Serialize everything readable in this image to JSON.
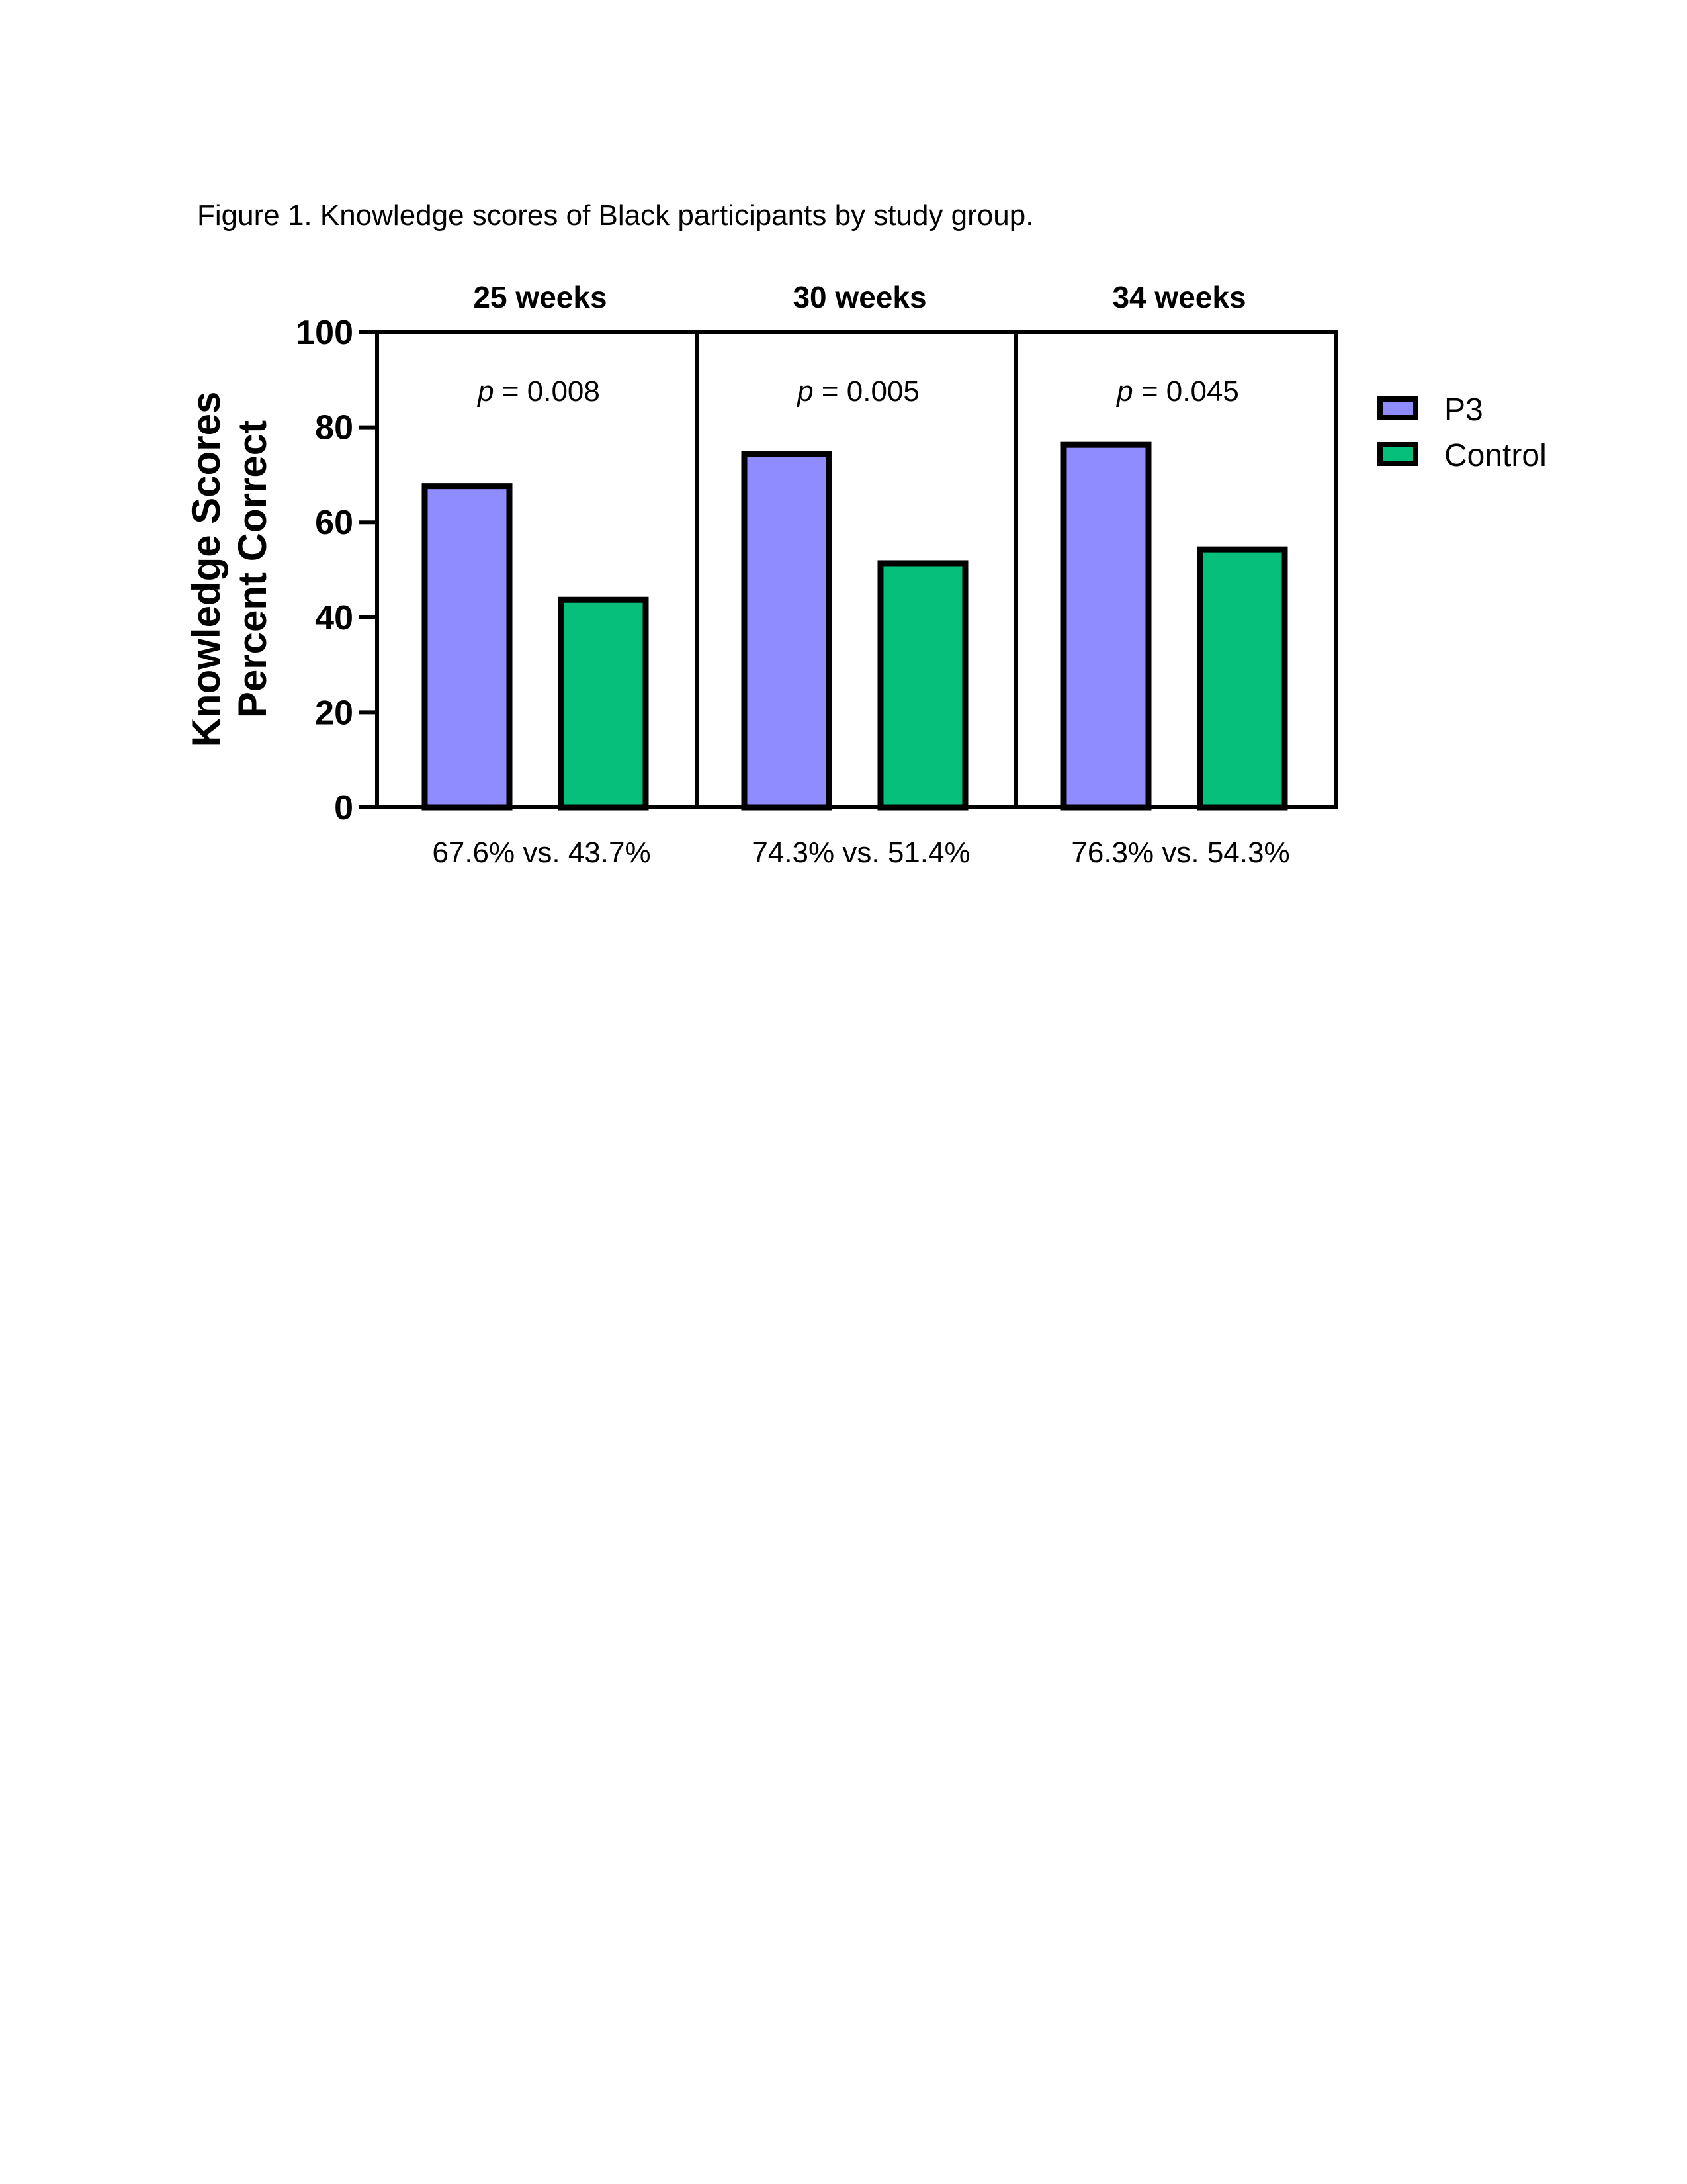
{
  "caption": "Figure 1. Knowledge scores of Black participants by study group.",
  "chart_data": {
    "type": "bar",
    "ylabel_lines": [
      "Knowledge Scores",
      "Percent Correct"
    ],
    "ylim": [
      0,
      100
    ],
    "yticks": [
      0,
      20,
      40,
      60,
      80,
      100
    ],
    "categories": [
      "25 weeks",
      "30 weeks",
      "34 weeks"
    ],
    "series": [
      {
        "name": "P3",
        "color": "#8f8cff",
        "values": [
          67.6,
          74.3,
          76.3
        ]
      },
      {
        "name": "Control",
        "color": "#05bf7a",
        "values": [
          43.7,
          51.4,
          54.3
        ]
      }
    ],
    "p_values": [
      "0.008",
      "0.005",
      "0.045"
    ],
    "p_symbol": "p",
    "comparisons": [
      "67.6% vs. 43.7%",
      "74.3% vs. 51.4%",
      "76.3% vs. 54.3%"
    ],
    "legend_position": "right",
    "grid": false
  }
}
